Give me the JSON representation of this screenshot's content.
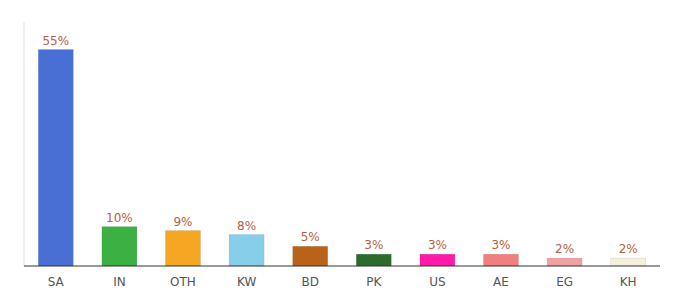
{
  "chart_data": {
    "type": "bar",
    "categories": [
      "SA",
      "IN",
      "OTH",
      "KW",
      "BD",
      "PK",
      "US",
      "AE",
      "EG",
      "KH"
    ],
    "values": [
      55,
      10,
      9,
      8,
      5,
      3,
      3,
      3,
      2,
      2
    ],
    "value_labels": [
      "55%",
      "10%",
      "9%",
      "8%",
      "5%",
      "3%",
      "3%",
      "3%",
      "2%",
      "2%"
    ],
    "colors": [
      "#4a6fd4",
      "#3cb043",
      "#f5a623",
      "#87ceeb",
      "#b8621a",
      "#2d6b2d",
      "#ff1aaa",
      "#f08080",
      "#f0a0a0",
      "#f5f0dc"
    ],
    "ylim": [
      0,
      62
    ],
    "data_labels": true,
    "tick_labels": "x",
    "grid": false
  }
}
